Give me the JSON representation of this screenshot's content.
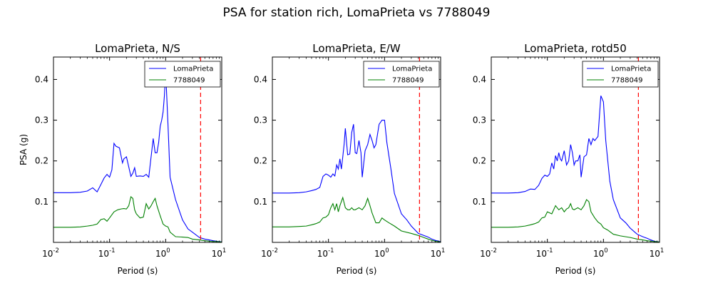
{
  "figure": {
    "suptitle": "PSA for station rich, LomaPrieta vs 7788049"
  },
  "chart_data": [
    {
      "type": "line",
      "title": "LomaPrieta, N/S",
      "xlabel": "Period (s)",
      "ylabel": "PSA (g)",
      "xscale": "log",
      "xlim": [
        0.01,
        10
      ],
      "ylim": [
        0.0,
        0.455
      ],
      "xticks": [
        0.01,
        0.1,
        1,
        10
      ],
      "yticks": [
        0.1,
        0.2,
        0.3,
        0.4
      ],
      "legend": "top-right",
      "reference_line": {
        "x": 4.2,
        "color": "#ff0000",
        "style": "dashed"
      },
      "series": [
        {
          "name": "LomaPrieta",
          "color": "#0000ff",
          "x": [
            0.01,
            0.02,
            0.03,
            0.04,
            0.05,
            0.06,
            0.07,
            0.08,
            0.09,
            0.1,
            0.11,
            0.12,
            0.13,
            0.15,
            0.17,
            0.18,
            0.2,
            0.22,
            0.24,
            0.26,
            0.28,
            0.3,
            0.35,
            0.4,
            0.45,
            0.5,
            0.55,
            0.6,
            0.65,
            0.7,
            0.75,
            0.8,
            0.85,
            0.9,
            0.95,
            1.0,
            1.1,
            1.2,
            1.5,
            2.0,
            2.5,
            3.0,
            4.0,
            5.0,
            6.0,
            7.0,
            8.0,
            9.0,
            10.0
          ],
          "y": [
            0.122,
            0.122,
            0.123,
            0.126,
            0.134,
            0.124,
            0.142,
            0.158,
            0.167,
            0.16,
            0.178,
            0.243,
            0.236,
            0.232,
            0.195,
            0.205,
            0.21,
            0.185,
            0.162,
            0.17,
            0.183,
            0.162,
            0.163,
            0.162,
            0.167,
            0.16,
            0.21,
            0.255,
            0.22,
            0.22,
            0.245,
            0.285,
            0.3,
            0.32,
            0.36,
            0.42,
            0.29,
            0.16,
            0.105,
            0.055,
            0.033,
            0.025,
            0.012,
            0.008,
            0.006,
            0.004,
            0.003,
            0.002,
            0.0015
          ]
        },
        {
          "name": "7788049",
          "color": "#008000",
          "x": [
            0.01,
            0.02,
            0.03,
            0.04,
            0.05,
            0.06,
            0.07,
            0.08,
            0.09,
            0.1,
            0.12,
            0.14,
            0.16,
            0.18,
            0.2,
            0.22,
            0.24,
            0.26,
            0.28,
            0.3,
            0.35,
            0.4,
            0.45,
            0.5,
            0.55,
            0.6,
            0.65,
            0.7,
            0.8,
            0.9,
            1.0,
            1.1,
            1.2,
            1.5,
            2.0,
            2.5,
            3.0,
            4.0,
            5.0,
            6.0,
            7.0,
            8.0,
            10.0
          ],
          "y": [
            0.037,
            0.037,
            0.038,
            0.04,
            0.042,
            0.045,
            0.056,
            0.058,
            0.052,
            0.06,
            0.075,
            0.08,
            0.082,
            0.083,
            0.082,
            0.09,
            0.112,
            0.108,
            0.08,
            0.07,
            0.06,
            0.062,
            0.095,
            0.082,
            0.09,
            0.1,
            0.108,
            0.09,
            0.065,
            0.045,
            0.04,
            0.038,
            0.025,
            0.014,
            0.013,
            0.012,
            0.008,
            0.006,
            0.004,
            0.003,
            0.002,
            0.002,
            0.001
          ]
        }
      ]
    },
    {
      "type": "line",
      "title": "LomaPrieta, E/W",
      "xlabel": "Period (s)",
      "ylabel": "",
      "xscale": "log",
      "xlim": [
        0.01,
        10
      ],
      "ylim": [
        0.0,
        0.455
      ],
      "xticks": [
        0.01,
        0.1,
        1,
        10
      ],
      "yticks": [
        0.1,
        0.2,
        0.3,
        0.4
      ],
      "legend": "top-right",
      "reference_line": {
        "x": 4.2,
        "color": "#ff0000",
        "style": "dashed"
      },
      "series": [
        {
          "name": "LomaPrieta",
          "color": "#0000ff",
          "x": [
            0.01,
            0.02,
            0.03,
            0.04,
            0.05,
            0.06,
            0.07,
            0.08,
            0.09,
            0.1,
            0.11,
            0.12,
            0.13,
            0.14,
            0.15,
            0.16,
            0.17,
            0.18,
            0.19,
            0.2,
            0.22,
            0.24,
            0.26,
            0.28,
            0.3,
            0.32,
            0.35,
            0.38,
            0.4,
            0.45,
            0.5,
            0.55,
            0.6,
            0.65,
            0.7,
            0.8,
            0.9,
            1.0,
            1.1,
            1.3,
            1.5,
            2.0,
            2.5,
            3.0,
            4.0,
            5.0,
            6.0,
            7.0,
            8.0,
            10.0
          ],
          "y": [
            0.121,
            0.121,
            0.122,
            0.124,
            0.127,
            0.13,
            0.135,
            0.162,
            0.168,
            0.165,
            0.16,
            0.168,
            0.163,
            0.19,
            0.18,
            0.205,
            0.18,
            0.21,
            0.24,
            0.28,
            0.215,
            0.217,
            0.27,
            0.29,
            0.22,
            0.218,
            0.25,
            0.22,
            0.16,
            0.225,
            0.24,
            0.265,
            0.25,
            0.232,
            0.24,
            0.29,
            0.3,
            0.3,
            0.245,
            0.18,
            0.12,
            0.07,
            0.055,
            0.04,
            0.022,
            0.017,
            0.013,
            0.008,
            0.005,
            0.002
          ]
        },
        {
          "name": "7788049",
          "color": "#008000",
          "x": [
            0.01,
            0.02,
            0.03,
            0.04,
            0.05,
            0.06,
            0.07,
            0.08,
            0.09,
            0.1,
            0.11,
            0.12,
            0.13,
            0.14,
            0.15,
            0.16,
            0.18,
            0.2,
            0.22,
            0.24,
            0.26,
            0.28,
            0.3,
            0.35,
            0.4,
            0.45,
            0.5,
            0.55,
            0.6,
            0.7,
            0.8,
            0.9,
            1.0,
            1.2,
            1.5,
            2.0,
            3.0,
            4.0,
            5.0,
            6.0,
            7.0,
            8.0,
            10.0
          ],
          "y": [
            0.038,
            0.038,
            0.039,
            0.04,
            0.043,
            0.046,
            0.05,
            0.06,
            0.062,
            0.068,
            0.085,
            0.095,
            0.08,
            0.095,
            0.075,
            0.09,
            0.11,
            0.085,
            0.08,
            0.08,
            0.085,
            0.08,
            0.08,
            0.085,
            0.08,
            0.09,
            0.108,
            0.09,
            0.072,
            0.048,
            0.048,
            0.06,
            0.055,
            0.048,
            0.04,
            0.028,
            0.022,
            0.017,
            0.012,
            0.008,
            0.005,
            0.003,
            0.001
          ]
        }
      ]
    },
    {
      "type": "line",
      "title": "LomaPrieta, rotd50",
      "xlabel": "Period (s)",
      "ylabel": "",
      "xscale": "log",
      "xlim": [
        0.01,
        10
      ],
      "ylim": [
        0.0,
        0.455
      ],
      "xticks": [
        0.01,
        0.1,
        1,
        10
      ],
      "yticks": [
        0.1,
        0.2,
        0.3,
        0.4
      ],
      "legend": "top-right",
      "reference_line": {
        "x": 4.2,
        "color": "#ff0000",
        "style": "dashed"
      },
      "series": [
        {
          "name": "LomaPrieta",
          "color": "#0000ff",
          "x": [
            0.01,
            0.02,
            0.03,
            0.04,
            0.05,
            0.06,
            0.07,
            0.08,
            0.09,
            0.1,
            0.11,
            0.12,
            0.13,
            0.14,
            0.15,
            0.16,
            0.17,
            0.18,
            0.2,
            0.22,
            0.24,
            0.26,
            0.28,
            0.3,
            0.32,
            0.35,
            0.38,
            0.4,
            0.45,
            0.5,
            0.55,
            0.6,
            0.65,
            0.7,
            0.8,
            0.9,
            1.0,
            1.1,
            1.3,
            1.5,
            2.0,
            2.5,
            3.0,
            4.0,
            5.0,
            6.0,
            7.0,
            8.0,
            10.0
          ],
          "y": [
            0.121,
            0.121,
            0.122,
            0.125,
            0.131,
            0.13,
            0.14,
            0.157,
            0.165,
            0.162,
            0.168,
            0.195,
            0.18,
            0.213,
            0.2,
            0.22,
            0.205,
            0.2,
            0.225,
            0.19,
            0.2,
            0.24,
            0.22,
            0.19,
            0.2,
            0.2,
            0.215,
            0.16,
            0.21,
            0.215,
            0.255,
            0.24,
            0.255,
            0.25,
            0.26,
            0.36,
            0.345,
            0.25,
            0.15,
            0.105,
            0.06,
            0.048,
            0.035,
            0.02,
            0.014,
            0.01,
            0.006,
            0.003,
            0.001
          ]
        },
        {
          "name": "7788049",
          "color": "#008000",
          "x": [
            0.01,
            0.02,
            0.03,
            0.04,
            0.05,
            0.06,
            0.07,
            0.08,
            0.09,
            0.1,
            0.12,
            0.14,
            0.16,
            0.18,
            0.2,
            0.22,
            0.24,
            0.26,
            0.28,
            0.3,
            0.35,
            0.4,
            0.45,
            0.5,
            0.55,
            0.6,
            0.7,
            0.8,
            0.9,
            1.0,
            1.2,
            1.5,
            2.0,
            3.0,
            4.0,
            5.0,
            6.0,
            7.0,
            8.0,
            10.0
          ],
          "y": [
            0.037,
            0.037,
            0.038,
            0.04,
            0.043,
            0.046,
            0.05,
            0.06,
            0.062,
            0.075,
            0.07,
            0.09,
            0.08,
            0.085,
            0.075,
            0.082,
            0.085,
            0.095,
            0.082,
            0.08,
            0.085,
            0.08,
            0.09,
            0.105,
            0.1,
            0.075,
            0.06,
            0.05,
            0.045,
            0.036,
            0.03,
            0.02,
            0.016,
            0.012,
            0.008,
            0.006,
            0.004,
            0.003,
            0.002,
            0.001
          ]
        }
      ]
    }
  ]
}
